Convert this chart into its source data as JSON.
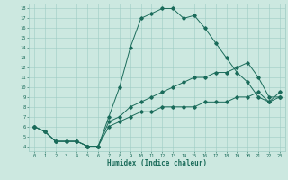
{
  "xlabel": "Humidex (Indice chaleur)",
  "bg_color": "#cce8e0",
  "line_color": "#1a6b5a",
  "grid_color": "#9eccc4",
  "xlim": [
    -0.5,
    23.5
  ],
  "ylim": [
    3.5,
    18.5
  ],
  "xticks": [
    0,
    1,
    2,
    3,
    4,
    5,
    6,
    7,
    8,
    9,
    10,
    11,
    12,
    13,
    14,
    15,
    16,
    17,
    18,
    19,
    20,
    21,
    22,
    23
  ],
  "yticks": [
    4,
    5,
    6,
    7,
    8,
    9,
    10,
    11,
    12,
    13,
    14,
    15,
    16,
    17,
    18
  ],
  "line1_x": [
    0,
    1,
    2,
    3,
    4,
    5,
    6,
    7,
    8,
    9,
    10,
    11,
    12,
    13,
    14,
    15,
    16,
    17,
    18,
    19,
    20,
    21,
    22,
    23
  ],
  "line1_y": [
    6,
    5.5,
    4.5,
    4.5,
    4.5,
    4.0,
    4.0,
    7.0,
    10.0,
    14.0,
    17.0,
    17.5,
    18.0,
    18.0,
    17.0,
    17.3,
    16.0,
    14.5,
    13.0,
    11.5,
    10.5,
    9.0,
    8.5,
    9.0
  ],
  "line2_x": [
    0,
    1,
    2,
    3,
    4,
    5,
    6,
    7,
    8,
    9,
    10,
    11,
    12,
    13,
    14,
    15,
    16,
    17,
    18,
    19,
    20,
    21,
    22,
    23
  ],
  "line2_y": [
    6,
    5.5,
    4.5,
    4.5,
    4.5,
    4.0,
    4.0,
    6.5,
    7.0,
    8.0,
    8.5,
    9.0,
    9.5,
    10.0,
    10.5,
    11.0,
    11.0,
    11.5,
    11.5,
    12.0,
    12.5,
    11.0,
    9.0,
    9.0
  ],
  "line3_x": [
    0,
    1,
    2,
    3,
    4,
    5,
    6,
    7,
    8,
    9,
    10,
    11,
    12,
    13,
    14,
    15,
    16,
    17,
    18,
    19,
    20,
    21,
    22,
    23
  ],
  "line3_y": [
    6,
    5.5,
    4.5,
    4.5,
    4.5,
    4.0,
    4.0,
    6.0,
    6.5,
    7.0,
    7.5,
    7.5,
    8.0,
    8.0,
    8.0,
    8.0,
    8.5,
    8.5,
    8.5,
    9.0,
    9.0,
    9.5,
    8.5,
    9.5
  ]
}
